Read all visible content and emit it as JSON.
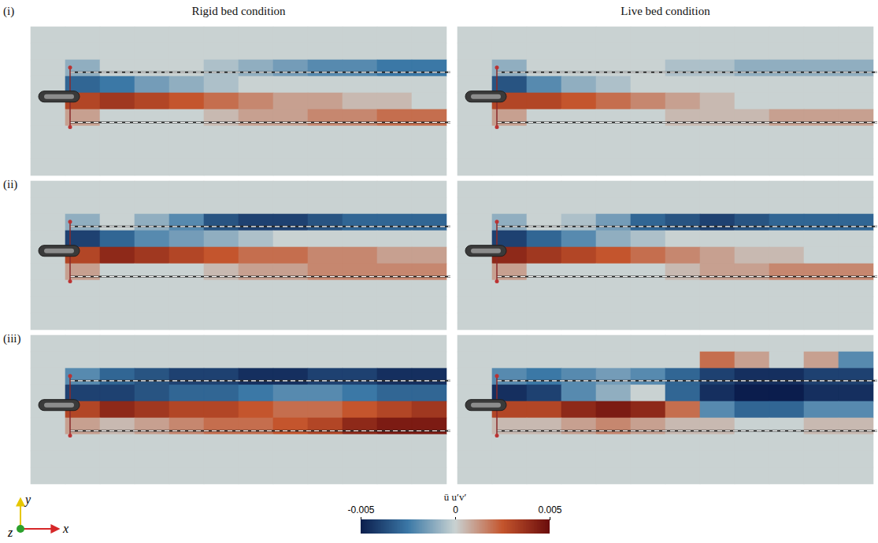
{
  "chart_data": {
    "type": "heatmap",
    "column_titles": [
      "Rigid bed condition",
      "Live bed condition"
    ],
    "row_labels": [
      "(i)",
      "(ii)",
      "(iii)"
    ],
    "colorbar_label": "ū u′v′",
    "colorbar_range": [
      -0.005,
      0.005
    ],
    "colorbar_ticks": [
      -0.005,
      0,
      0.005
    ],
    "axis_labels": [
      "x",
      "y",
      "z"
    ],
    "tick_labels": false,
    "panels": [
      {
        "row": "(i)",
        "column": "Rigid bed condition",
        "cells": [
          [
            0,
            0,
            0,
            0,
            0,
            0,
            0,
            0,
            0,
            0,
            0,
            0
          ],
          [
            0,
            0,
            0,
            0,
            0,
            0,
            0,
            0,
            0,
            0,
            0,
            0
          ],
          [
            0,
            -0.001,
            0,
            0,
            0,
            -0.0005,
            -0.001,
            -0.0015,
            -0.002,
            -0.002,
            -0.0025,
            -0.0025
          ],
          [
            0,
            -0.003,
            -0.0025,
            -0.0015,
            -0.001,
            -0.0005,
            0,
            0,
            0,
            0,
            0,
            0
          ],
          [
            0,
            0.003,
            0.0035,
            0.003,
            0.0025,
            0.002,
            0.0015,
            0.001,
            0.001,
            0.0005,
            0.0005,
            0
          ],
          [
            0,
            0.001,
            0,
            0,
            0,
            0.0005,
            0.001,
            0.001,
            0.0015,
            0.0015,
            0.002,
            0.002
          ],
          [
            0,
            0,
            0,
            0,
            0,
            0,
            0,
            0,
            0,
            0,
            0,
            0
          ],
          [
            0,
            0,
            0,
            0,
            0,
            0,
            0,
            0,
            0,
            0,
            0,
            0
          ],
          [
            0,
            0,
            0,
            0,
            0,
            0,
            0,
            0,
            0,
            0,
            0,
            0
          ]
        ]
      },
      {
        "row": "(i)",
        "column": "Live bed condition",
        "cells": [
          [
            0,
            0,
            0,
            0,
            0,
            0,
            0,
            0,
            0,
            0,
            0,
            0
          ],
          [
            0,
            0,
            0,
            0,
            0,
            0,
            0,
            0,
            0,
            0,
            0,
            0
          ],
          [
            0,
            -0.001,
            0,
            0,
            0,
            0,
            -0.0005,
            -0.0005,
            -0.001,
            -0.001,
            -0.001,
            -0.001
          ],
          [
            0,
            -0.0035,
            -0.002,
            -0.001,
            -0.0005,
            0,
            0,
            0,
            0,
            0,
            0,
            0
          ],
          [
            0,
            0.003,
            0.003,
            0.0025,
            0.002,
            0.0015,
            0.001,
            0.0005,
            0,
            0,
            0,
            0
          ],
          [
            0,
            0.001,
            0,
            0,
            0,
            0,
            0.0005,
            0.0005,
            0.0005,
            0.001,
            0.001,
            0.001
          ],
          [
            0,
            0,
            0,
            0,
            0,
            0,
            0,
            0,
            0,
            0,
            0,
            0
          ],
          [
            0,
            0,
            0,
            0,
            0,
            0,
            0,
            0,
            0,
            0,
            0,
            0
          ],
          [
            0,
            0,
            0,
            0,
            0,
            0,
            0,
            0,
            0,
            0,
            0,
            0
          ]
        ]
      },
      {
        "row": "(ii)",
        "column": "Rigid bed condition",
        "cells": [
          [
            0,
            0,
            0,
            0,
            0,
            0,
            0,
            0,
            0,
            0,
            0,
            0
          ],
          [
            0,
            0,
            0,
            0,
            0,
            0,
            0,
            0,
            0,
            0,
            0,
            0
          ],
          [
            0,
            -0.001,
            0,
            -0.001,
            -0.002,
            -0.0035,
            -0.004,
            -0.004,
            -0.0035,
            -0.003,
            -0.003,
            -0.003
          ],
          [
            0,
            -0.004,
            -0.003,
            -0.002,
            -0.0015,
            -0.001,
            -0.0005,
            0,
            0,
            0,
            0,
            0
          ],
          [
            0,
            0.003,
            0.004,
            0.0035,
            0.003,
            0.0025,
            0.002,
            0.002,
            0.0015,
            0.0015,
            0.001,
            0.001
          ],
          [
            0,
            0.001,
            0,
            0,
            0,
            0.0005,
            0.001,
            0.001,
            0.0015,
            0.0015,
            0.0015,
            0.0015
          ],
          [
            0,
            0,
            0,
            0,
            0,
            0,
            0,
            0,
            0,
            0,
            0,
            0
          ],
          [
            0,
            0,
            0,
            0,
            0,
            0,
            0,
            0,
            0,
            0,
            0,
            0
          ],
          [
            0,
            0,
            0,
            0,
            0,
            0,
            0,
            0,
            0,
            0,
            0,
            0
          ]
        ]
      },
      {
        "row": "(ii)",
        "column": "Live bed condition",
        "cells": [
          [
            0,
            0,
            0,
            0,
            0,
            0,
            0,
            0,
            0,
            0,
            0,
            0
          ],
          [
            0,
            0,
            0,
            0,
            0,
            0,
            0,
            0,
            0,
            0,
            0,
            0
          ],
          [
            0,
            -0.001,
            0,
            -0.0005,
            -0.0015,
            -0.003,
            -0.0035,
            -0.004,
            -0.0035,
            -0.003,
            -0.003,
            -0.003
          ],
          [
            0,
            -0.004,
            -0.003,
            -0.002,
            -0.001,
            -0.0005,
            0,
            0,
            0,
            0,
            0,
            0
          ],
          [
            0,
            0.004,
            0.0035,
            0.003,
            0.0025,
            0.002,
            0.0015,
            0.001,
            0.0005,
            0.0005,
            0,
            0
          ],
          [
            0,
            0.001,
            0,
            0,
            0,
            0,
            0.0005,
            0.001,
            0.001,
            0.0015,
            0.0015,
            0.0015
          ],
          [
            0,
            0,
            0,
            0,
            0,
            0,
            0,
            0,
            0,
            0,
            0,
            0
          ],
          [
            0,
            0,
            0,
            0,
            0,
            0,
            0,
            0,
            0,
            0,
            0,
            0
          ],
          [
            0,
            0,
            0,
            0,
            0,
            0,
            0,
            0,
            0,
            0,
            0,
            0
          ]
        ]
      },
      {
        "row": "(iii)",
        "column": "Rigid bed condition",
        "cells": [
          [
            0,
            0,
            0,
            0,
            0,
            0,
            0,
            0,
            0,
            0,
            0,
            0
          ],
          [
            0,
            0,
            0,
            0,
            0,
            0,
            0,
            0,
            0,
            0,
            0,
            0
          ],
          [
            0,
            -0.002,
            -0.003,
            -0.0035,
            -0.004,
            -0.004,
            -0.0045,
            -0.0045,
            -0.004,
            -0.004,
            -0.0045,
            -0.0045
          ],
          [
            0,
            -0.004,
            -0.004,
            -0.0035,
            -0.003,
            -0.003,
            -0.0025,
            -0.002,
            -0.002,
            -0.0025,
            -0.003,
            -0.003
          ],
          [
            0,
            0.003,
            0.004,
            0.0035,
            0.003,
            0.003,
            0.0025,
            0.002,
            0.002,
            0.0025,
            0.003,
            0.0035
          ],
          [
            0,
            0.001,
            0.0005,
            0.001,
            0.0015,
            0.002,
            0.002,
            0.0025,
            0.003,
            0.004,
            0.0045,
            0.0045
          ],
          [
            0,
            0,
            0,
            0,
            0,
            0,
            0,
            0,
            0,
            0,
            0,
            0
          ],
          [
            0,
            0,
            0,
            0,
            0,
            0,
            0,
            0,
            0,
            0,
            0,
            0
          ],
          [
            0,
            0,
            0,
            0,
            0,
            0,
            0,
            0,
            0,
            0,
            0,
            0
          ]
        ]
      },
      {
        "row": "(iii)",
        "column": "Live bed condition",
        "cells": [
          [
            0,
            0,
            0,
            0,
            0,
            0,
            0,
            0,
            0,
            0,
            0,
            0
          ],
          [
            0,
            0,
            0,
            0,
            0,
            0,
            0,
            0.002,
            0.001,
            0,
            0.001,
            -0.002
          ],
          [
            0,
            -0.002,
            -0.0025,
            -0.002,
            -0.0015,
            -0.002,
            -0.003,
            -0.004,
            -0.0045,
            -0.0045,
            -0.004,
            -0.004
          ],
          [
            0,
            -0.0045,
            -0.004,
            -0.002,
            -0.001,
            0,
            -0.003,
            -0.0045,
            -0.005,
            -0.005,
            -0.0045,
            -0.0045
          ],
          [
            0,
            0.003,
            0.003,
            0.004,
            0.0045,
            0.004,
            0.002,
            -0.002,
            -0.003,
            -0.003,
            -0.002,
            -0.002
          ],
          [
            0,
            0.0005,
            0.0005,
            0.001,
            0.0015,
            0.001,
            0.0005,
            0.0005,
            0,
            0,
            0.0005,
            0.0005
          ],
          [
            0,
            0,
            0,
            0,
            0,
            0,
            0,
            0,
            0,
            0,
            0,
            0
          ],
          [
            0,
            0,
            0,
            0,
            0,
            0,
            0,
            0,
            0,
            0,
            0,
            0
          ],
          [
            0,
            0,
            0,
            0,
            0,
            0,
            0,
            0,
            0,
            0,
            0,
            0
          ]
        ]
      }
    ]
  }
}
